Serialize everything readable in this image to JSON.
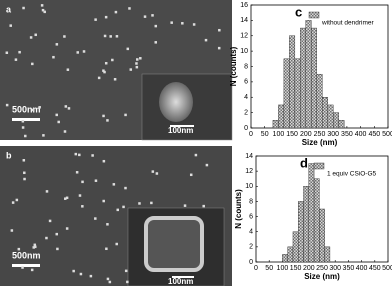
{
  "panels": [
    {
      "label": "a",
      "scale_bar": "500nm",
      "inset_scale_bar": "100nm"
    },
    {
      "label": "b",
      "scale_bar": "500nm",
      "inset_scale_bar": "100nm"
    }
  ],
  "chart_data": [
    {
      "type": "histogram",
      "label": "c",
      "x_label": "Size (nm)",
      "y_label": "N (counts)",
      "bins": [
        80,
        100,
        120,
        140,
        160,
        180,
        200,
        220,
        240,
        260,
        280,
        300,
        320,
        340
      ],
      "series": [
        {
          "name": "without dendrimer",
          "color": "#b8b8b8",
          "values": [
            1,
            3,
            9,
            12,
            9,
            13,
            14,
            13,
            7,
            4,
            3,
            2,
            1
          ]
        }
      ],
      "xlim": [
        0,
        500
      ],
      "xticks": [
        0,
        50,
        100,
        150,
        200,
        250,
        300,
        350,
        400,
        450,
        500
      ],
      "ylim": [
        0,
        16
      ],
      "yticks": [
        0,
        2,
        4,
        6,
        8,
        10,
        12,
        14,
        16
      ]
    },
    {
      "type": "histogram",
      "label": "d",
      "x_label": "Size (nm)",
      "y_label": "N (counts)",
      "bins": [
        100,
        120,
        140,
        160,
        180,
        200,
        220,
        240,
        260,
        280
      ],
      "series": [
        {
          "name": "1 equiv CSiO-G5",
          "color": "#b8b8b8",
          "values": [
            1,
            2,
            4,
            8,
            10,
            13,
            11,
            7,
            2
          ]
        }
      ],
      "xlim": [
        0,
        500
      ],
      "xticks": [
        0,
        50,
        100,
        150,
        200,
        250,
        300,
        350,
        400,
        450,
        500
      ],
      "ylim": [
        0,
        14
      ],
      "yticks": [
        0,
        2,
        4,
        6,
        8,
        10,
        12,
        14
      ]
    }
  ]
}
